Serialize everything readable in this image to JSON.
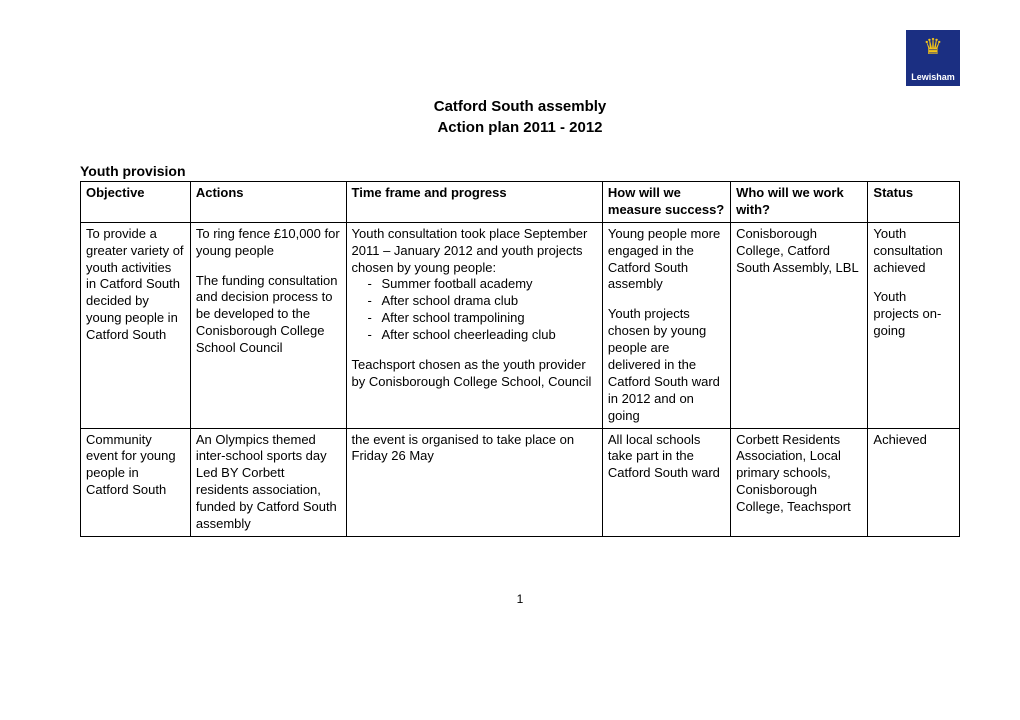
{
  "logo": {
    "org": "Lewisham",
    "bg_color": "#1b2f82",
    "crown_color": "#f5c518",
    "text_color": "#ffffff"
  },
  "title": {
    "line1": "Catford South assembly",
    "line2": "Action plan 2011 - 2012"
  },
  "section_heading": "Youth provision",
  "table": {
    "headers": {
      "objective": "Objective",
      "actions": "Actions",
      "timeframe": "Time frame and progress",
      "measure": "How will we measure success?",
      "who": "Who will we work with?",
      "status": "Status"
    },
    "rows": [
      {
        "objective": "To provide a greater variety of youth activities in Catford South decided by young people in Catford South",
        "actions_p1": "To ring fence £10,000 for young people",
        "actions_p2": "The funding consultation and decision process  to be developed to the Conisborough College School Council",
        "timeframe_intro": "Youth consultation took place September 2011 – January 2012 and youth projects chosen by young people:",
        "timeframe_bullets": [
          "Summer football academy",
          "After school drama club",
          "After school trampolining",
          "After school cheerleading club"
        ],
        "timeframe_outro": "Teachsport chosen as the youth provider by Conisborough College School, Council",
        "measure_p1": "Young people more engaged in the Catford South assembly",
        "measure_p2": "Youth projects chosen by young people are delivered in the Catford South ward in 2012 and on going",
        "who": "Conisborough College, Catford South Assembly, LBL",
        "status_p1": "Youth consultation achieved",
        "status_p2": "Youth projects on-going"
      },
      {
        "objective": "Community event for young people in Catford South",
        "actions": "An Olympics themed inter-school sports day  Led BY Corbett residents association, funded by Catford South assembly",
        "timeframe": "the event is organised to take place on Friday 26 May",
        "measure": "All local schools take part in the Catford South ward",
        "who": "Corbett Residents Association, Local primary schools, Conisborough College, Teachsport",
        "status": "Achieved"
      }
    ]
  },
  "page_number": "1"
}
